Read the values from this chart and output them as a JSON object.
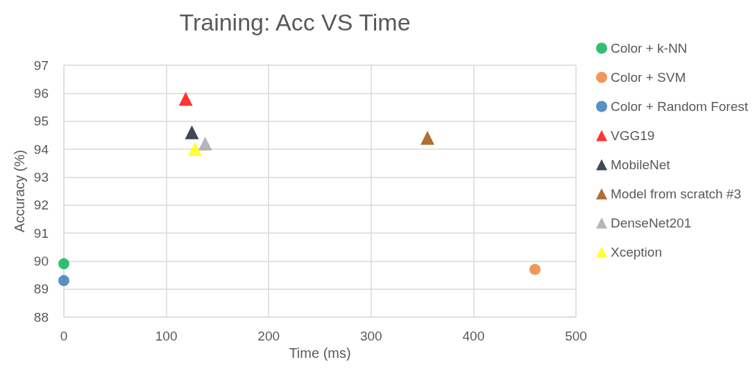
{
  "chart_data": {
    "type": "scatter",
    "title": "Training: Acc VS Time",
    "xlabel": "Time (ms)",
    "ylabel": "Accuracy (%)",
    "xlim": [
      0,
      500
    ],
    "xticks": [
      0,
      100,
      200,
      300,
      400,
      500
    ],
    "ylim": [
      88,
      97
    ],
    "yticks": [
      88,
      89,
      90,
      91,
      92,
      93,
      94,
      95,
      96,
      97
    ],
    "grid": true,
    "legend": "right",
    "series": [
      {
        "name": "Color + k-NN",
        "color": "#00b050",
        "marker": "circle",
        "x": [
          0
        ],
        "values": [
          89.9
        ]
      },
      {
        "name": "Color + SVM",
        "color": "#ed7d31",
        "marker": "circle",
        "x": [
          460
        ],
        "values": [
          89.7
        ]
      },
      {
        "name": "Color + Random Forest",
        "color": "#2e75b6",
        "marker": "circle",
        "x": [
          0
        ],
        "values": [
          89.3
        ]
      },
      {
        "name": "VGG19",
        "color": "#ff0000",
        "marker": "triangle",
        "x": [
          119
        ],
        "values": [
          95.8
        ]
      },
      {
        "name": "MobileNet",
        "color": "#0d1b2a",
        "marker": "triangle",
        "x": [
          125
        ],
        "values": [
          94.6
        ]
      },
      {
        "name": "Model from scratch #3",
        "color": "#9c4a00",
        "marker": "triangle",
        "x": [
          355
        ],
        "values": [
          94.4
        ]
      },
      {
        "name": "DenseNet201",
        "color": "#a5a5a5",
        "marker": "triangle",
        "x": [
          138
        ],
        "values": [
          94.2
        ]
      },
      {
        "name": "Xception",
        "color": "#ffff00",
        "marker": "triangle",
        "x": [
          128
        ],
        "values": [
          94.0
        ]
      }
    ]
  }
}
